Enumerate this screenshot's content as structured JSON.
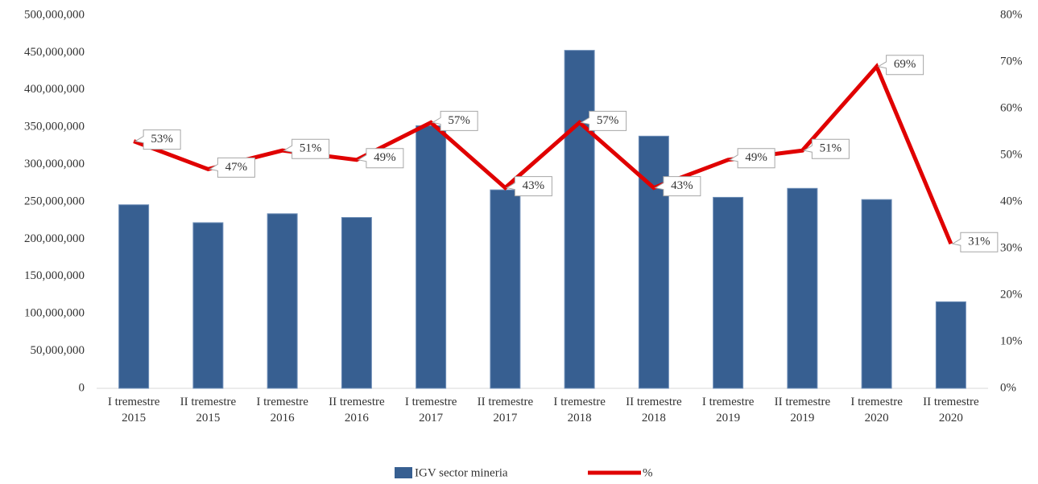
{
  "chart_data": {
    "type": "bar-line",
    "categories": [
      "I tremestre 2015",
      "II tremestre 2015",
      "I tremestre 2016",
      "II tremestre 2016",
      "I tremestre 2017",
      "II tremestre 2017",
      "I tremestre 2018",
      "II tremestre 2018",
      "I tremestre 2019",
      "II tremestre 2019",
      "I tremestre 2020",
      "II tremestre 2020"
    ],
    "series": [
      {
        "name": "IGV sector mineria",
        "type": "bar",
        "color": "#375f91",
        "values": [
          246000000,
          222000000,
          234000000,
          229000000,
          352000000,
          266000000,
          453000000,
          338000000,
          256000000,
          268000000,
          253000000,
          116000000
        ]
      },
      {
        "name": "%",
        "type": "line",
        "axis": "y2",
        "color": "#e00000",
        "values": [
          53,
          47,
          51,
          49,
          57,
          43,
          57,
          43,
          49,
          51,
          69,
          31
        ],
        "value_labels": [
          "53%",
          "47%",
          "51%",
          "49%",
          "57%",
          "43%",
          "57%",
          "43%",
          "49%",
          "51%",
          "69%",
          "31%"
        ]
      }
    ],
    "ylim": [
      0,
      500000000
    ],
    "yticks": [
      0,
      {
        "value": 50000000,
        "label": "50,000,000"
      },
      {
        "value": 100000000,
        "label": "100,000,000"
      },
      {
        "value": 150000000,
        "label": "150,000,000"
      },
      {
        "value": 200000000,
        "label": "200,000,000"
      },
      {
        "value": 250000000,
        "label": "250,000,000"
      },
      {
        "value": 300000000,
        "label": "300,000,000"
      },
      {
        "value": 350000000,
        "label": "350,000,000"
      },
      {
        "value": 400000000,
        "label": "400,000,000"
      },
      {
        "value": 450000000,
        "label": "450,000,000"
      },
      {
        "value": 500000000,
        "label": "500,000,000"
      }
    ],
    "y2lim": [
      0,
      80
    ],
    "y2ticks": [
      {
        "value": 0,
        "label": "0%"
      },
      {
        "value": 10,
        "label": "10%"
      },
      {
        "value": 20,
        "label": "20%"
      },
      {
        "value": 30,
        "label": "30%"
      },
      {
        "value": 40,
        "label": "40%"
      },
      {
        "value": 50,
        "label": "50%"
      },
      {
        "value": 60,
        "label": "60%"
      },
      {
        "value": 70,
        "label": "70%"
      },
      {
        "value": 80,
        "label": "80%"
      }
    ],
    "legend": "bottom"
  }
}
